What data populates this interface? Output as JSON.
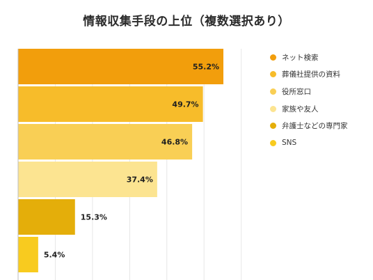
{
  "title": "情報収集手段の上位（複数選択あり）",
  "chart_data": {
    "type": "bar",
    "orientation": "horizontal",
    "title": "情報収集手段の上位（複数選択あり）",
    "categories": [
      "ネット検索",
      "葬儀社提供の資料",
      "役所窓口",
      "家族や友人",
      "弁護士などの専門家",
      "SNS"
    ],
    "values": [
      55.2,
      49.7,
      46.8,
      37.4,
      15.3,
      5.4
    ],
    "labels": [
      "55.2%",
      "49.7%",
      "46.8%",
      "37.4%",
      "15.3%",
      "5.4%"
    ],
    "colors": [
      "#F29E0C",
      "#F7BC2A",
      "#F9CF55",
      "#FCE491",
      "#E4AE0A",
      "#F8CB1F"
    ],
    "unit": "%",
    "xlim": [
      0,
      60
    ],
    "grid": true,
    "legend": "right"
  }
}
